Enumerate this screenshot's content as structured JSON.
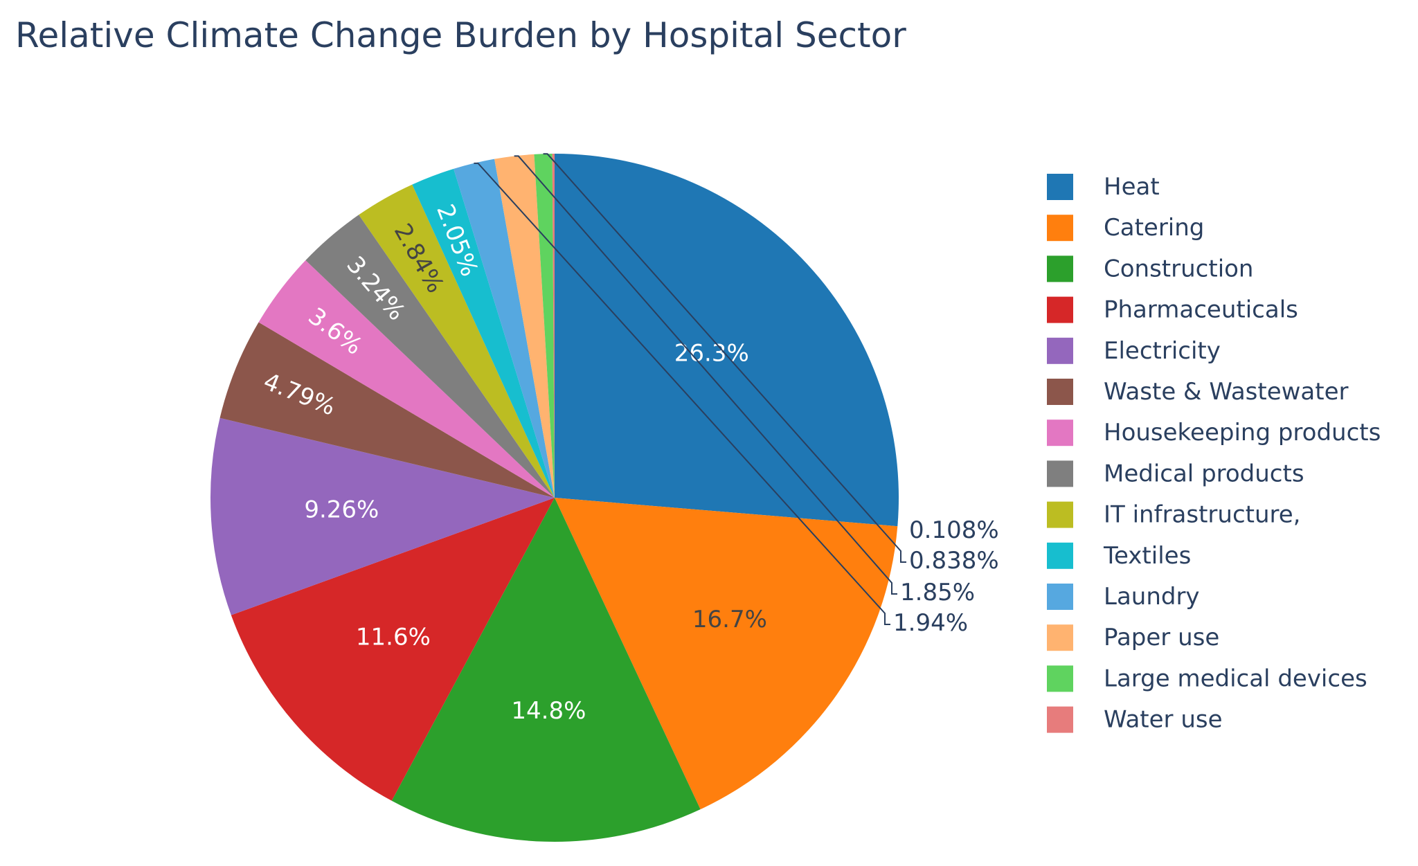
{
  "chart_data": {
    "type": "pie",
    "title": "Relative Climate Change Burden by Hospital Sector",
    "categories": [
      "Heat",
      "Catering",
      "Construction",
      "Pharmaceuticals",
      "Electricity",
      "Waste & Wastewater",
      "Housekeeping products",
      "Medical products",
      "IT infrastructure,",
      "Textiles",
      "Laundry",
      "Paper use",
      "Large medical devices",
      "Water use"
    ],
    "values": [
      26.3,
      16.7,
      14.8,
      11.6,
      9.26,
      4.79,
      3.6,
      3.24,
      2.84,
      2.05,
      1.94,
      1.85,
      0.838,
      0.108
    ],
    "labels": [
      "26.3%",
      "16.7%",
      "14.8%",
      "11.6%",
      "9.26%",
      "4.79%",
      "3.6%",
      "3.24%",
      "2.84%",
      "2.05%",
      "1.94%",
      "1.85%",
      "0.838%",
      "0.108%"
    ],
    "colors": [
      "#1f77b4",
      "#ff7f0e",
      "#2ca02c",
      "#d62728",
      "#9467bd",
      "#8c564b",
      "#e377c2",
      "#7f7f7f",
      "#bcbd22",
      "#17becf",
      "#56a8e0",
      "#ffb370",
      "#5fd35f",
      "#e77c7c"
    ],
    "legend_position": "right"
  }
}
